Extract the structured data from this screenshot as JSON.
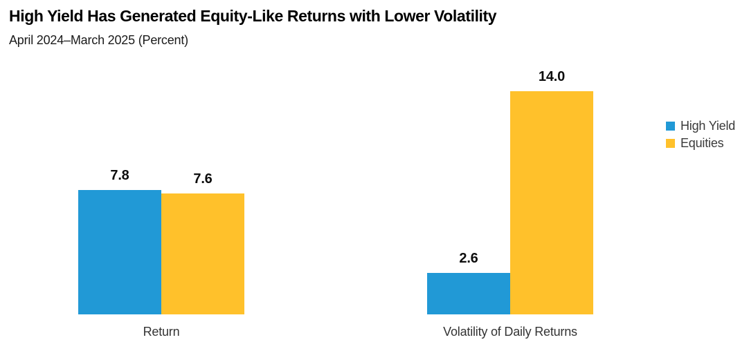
{
  "header": {
    "title": "High Yield Has Generated Equity-Like Returns with Lower Volatility",
    "subtitle": "April 2024–March 2025 (Percent)"
  },
  "legend": {
    "position": "right",
    "items": [
      {
        "label": "High Yield",
        "color": "#2199D6"
      },
      {
        "label": "Equities",
        "color": "#FFC12B"
      }
    ]
  },
  "chart_data": {
    "type": "bar",
    "title": "High Yield Has Generated Equity-Like Returns with Lower Volatility",
    "subtitle": "April 2024–March 2025 (Percent)",
    "unit": "percent",
    "categories": [
      "Return",
      "Volatility of Daily Returns"
    ],
    "series": [
      {
        "name": "High Yield",
        "color": "#2199D6",
        "values": [
          7.8,
          2.6
        ],
        "labels": [
          "7.8",
          "2.6"
        ]
      },
      {
        "name": "Equities",
        "color": "#FFC12B",
        "values": [
          7.6,
          14.0
        ],
        "labels": [
          "7.6",
          "14.0"
        ]
      }
    ],
    "ylim": [
      0,
      15.5
    ],
    "grid": false,
    "axis_visible": false,
    "legend_position": "right"
  }
}
